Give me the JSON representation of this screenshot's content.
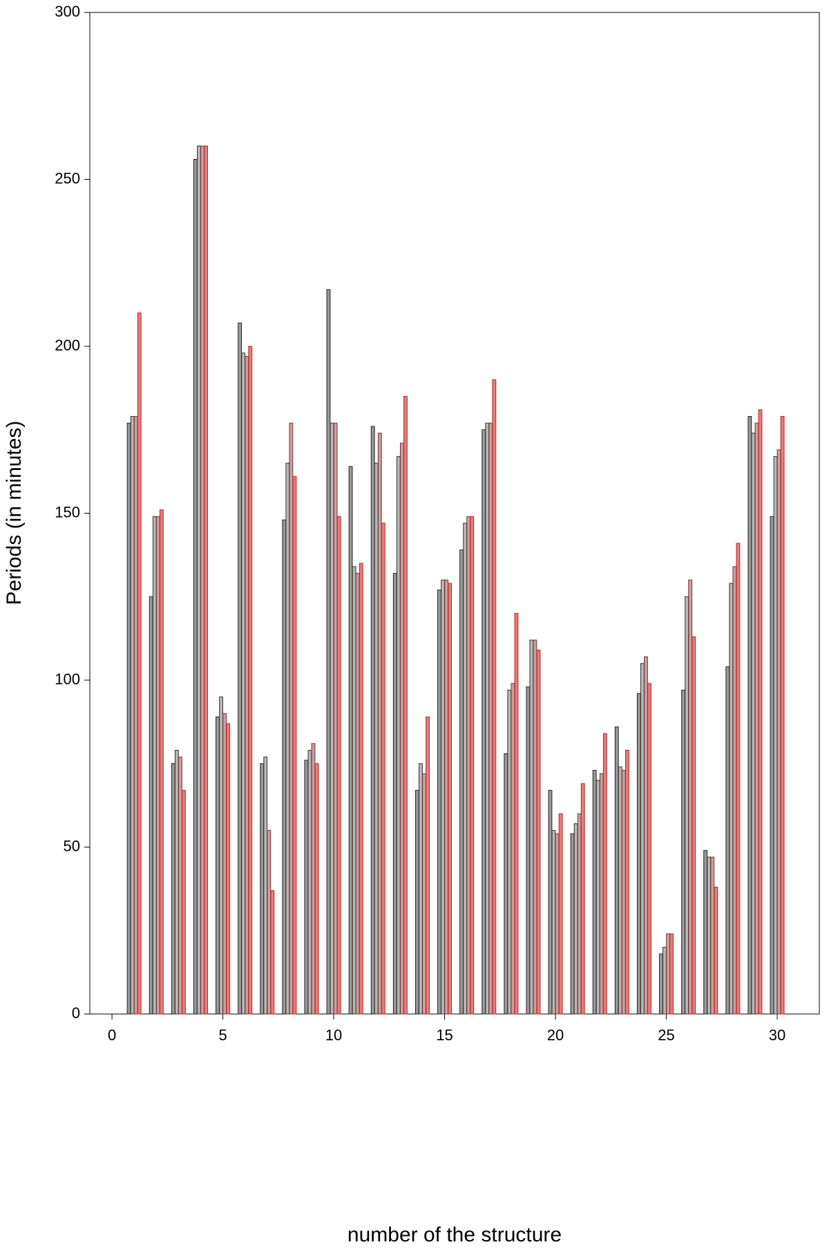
{
  "chart_data": {
    "type": "bar",
    "x_label": "number of the structure",
    "y_label": "Periods (in minutes)",
    "x": [
      1,
      2,
      3,
      4,
      5,
      6,
      7,
      8,
      9,
      10,
      11,
      12,
      13,
      14,
      15,
      16,
      17,
      18,
      19,
      20,
      21,
      22,
      23,
      24,
      25,
      26,
      27,
      28,
      29,
      30
    ],
    "series": [
      {
        "color": "#9a9a9a",
        "values": [
          177,
          125,
          75,
          256,
          89,
          207,
          75,
          148,
          76,
          217,
          164,
          176,
          132,
          67,
          127,
          139,
          175,
          78,
          98,
          67,
          54,
          73,
          86,
          96,
          18,
          97,
          49,
          104,
          179,
          149
        ]
      },
      {
        "color": "#b8b8b8",
        "values": [
          179,
          149,
          79,
          260,
          95,
          198,
          77,
          165,
          79,
          177,
          134,
          165,
          167,
          75,
          130,
          147,
          177,
          97,
          112,
          55,
          57,
          70,
          74,
          105,
          20,
          125,
          47,
          129,
          174,
          167
        ]
      },
      {
        "color": "#c9a0a0",
        "values": [
          179,
          149,
          77,
          260,
          90,
          197,
          55,
          177,
          81,
          177,
          132,
          174,
          171,
          72,
          130,
          149,
          177,
          99,
          112,
          54,
          60,
          72,
          73,
          107,
          24,
          130,
          47,
          134,
          177,
          169
        ]
      },
      {
        "color": "#e08080",
        "values": [
          210,
          151,
          67,
          260,
          87,
          200,
          37,
          161,
          75,
          149,
          135,
          147,
          185,
          89,
          129,
          149,
          190,
          120,
          109,
          60,
          69,
          84,
          79,
          99,
          24,
          113,
          38,
          141,
          181,
          179
        ]
      }
    ],
    "xlim": [
      -1,
      31.9
    ],
    "xticks": [
      0,
      5,
      10,
      15,
      20,
      25,
      30
    ],
    "ylim": [
      0,
      300
    ],
    "yticks": [
      0,
      50,
      100,
      150,
      200,
      250,
      300
    ]
  }
}
